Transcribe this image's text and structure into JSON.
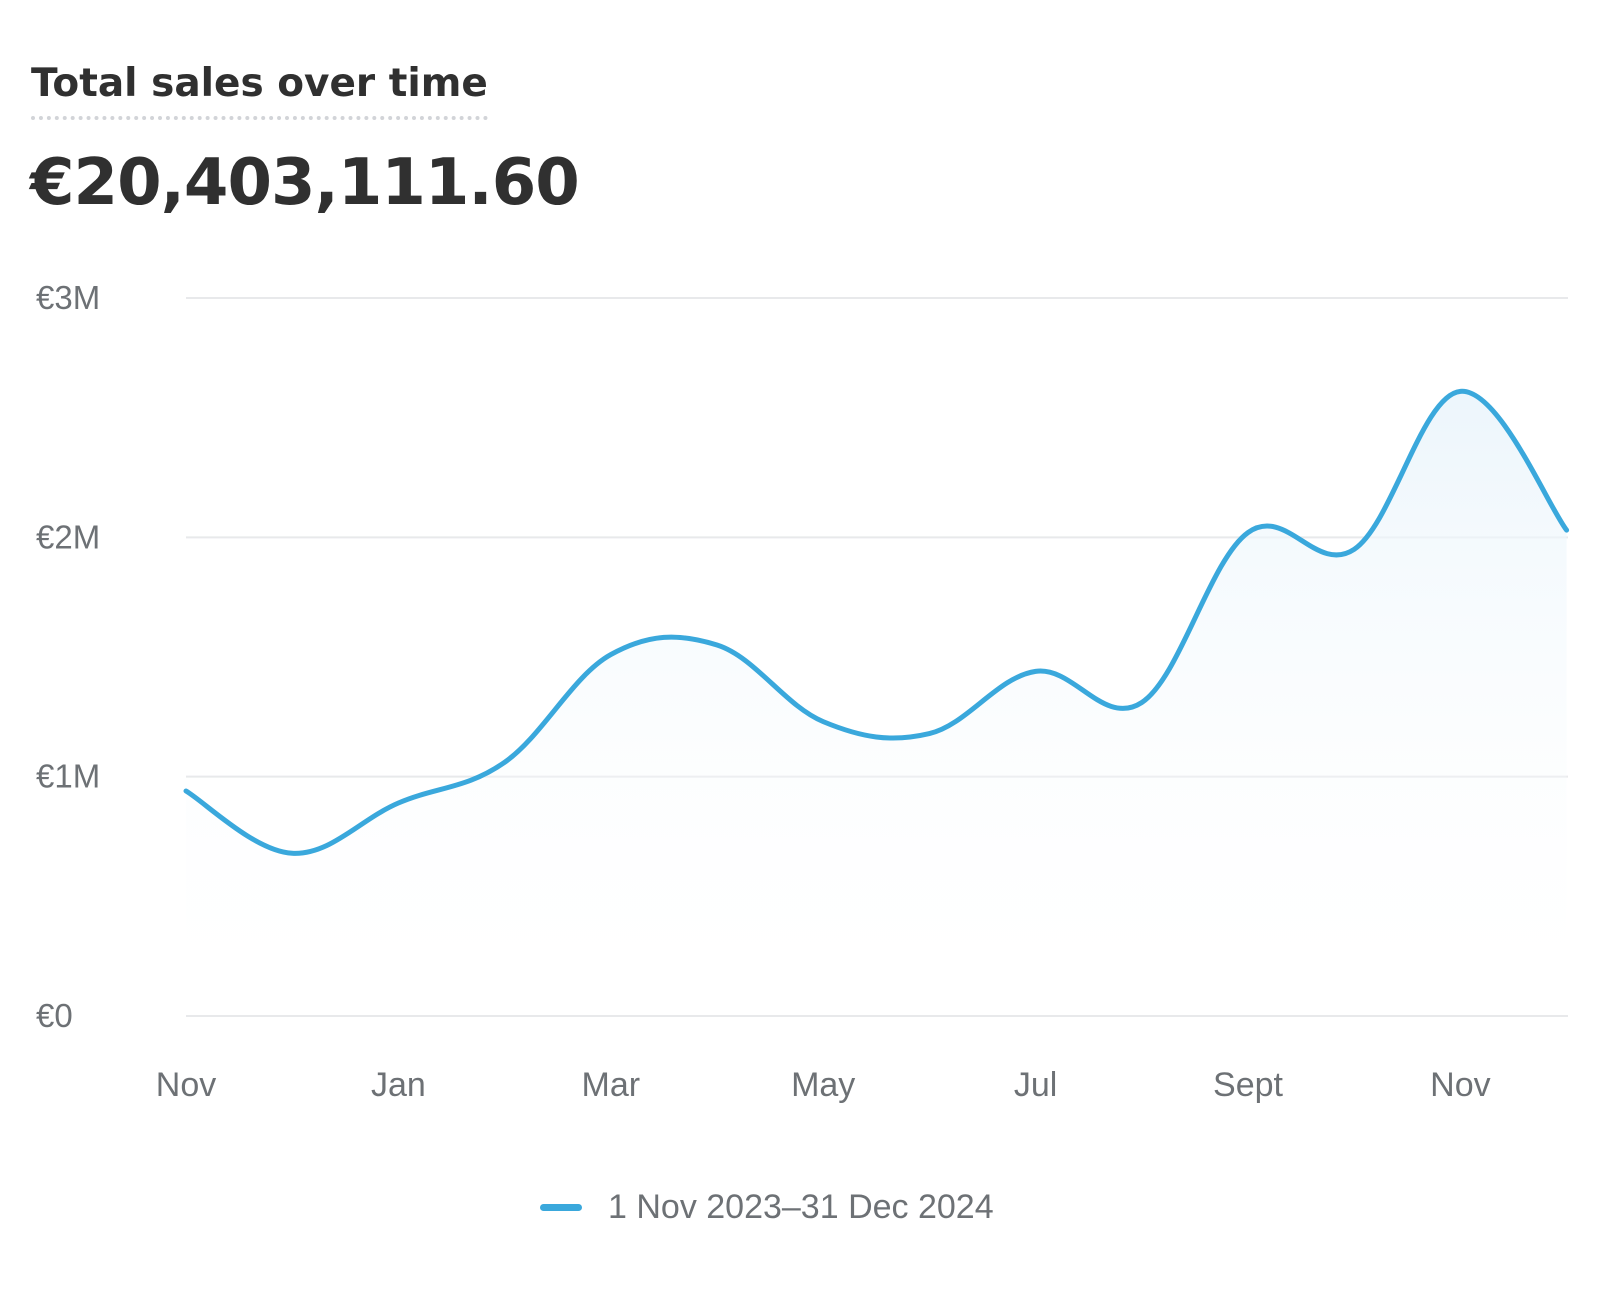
{
  "card": {
    "title": "Total sales over time",
    "total": "€20,403,111.60"
  },
  "colors": {
    "line": "#3aa8dc",
    "area_top": "#e9f4fb",
    "grid": "#e8e9eb",
    "axis_text": "#6d7175"
  },
  "chart_data": {
    "type": "area",
    "title": "Total sales over time",
    "xlabel": "",
    "ylabel": "",
    "x": [
      "2023-11",
      "2023-12",
      "2024-01",
      "2024-02",
      "2024-03",
      "2024-04",
      "2024-05",
      "2024-06",
      "2024-07",
      "2024-08",
      "2024-09",
      "2024-10",
      "2024-11",
      "2024-12"
    ],
    "x_tick_labels": [
      "Nov",
      "Jan",
      "Mar",
      "May",
      "Jul",
      "Sept",
      "Nov"
    ],
    "x_tick_positions": [
      "2023-11",
      "2024-01",
      "2024-03",
      "2024-05",
      "2024-07",
      "2024-09",
      "2024-11"
    ],
    "y_tick_labels": [
      "€0",
      "€1M",
      "€2M",
      "€3M"
    ],
    "y_ticks": [
      0,
      1000000,
      2000000,
      3000000
    ],
    "ylim": [
      0,
      3000000
    ],
    "grid": true,
    "legend_position": "bottom-center",
    "series": [
      {
        "name": "1 Nov 2023–31 Dec 2024",
        "values": [
          940000,
          680000,
          890000,
          1060000,
          1510000,
          1550000,
          1230000,
          1180000,
          1440000,
          1310000,
          2020000,
          1950000,
          2610000,
          2030000
        ]
      }
    ]
  }
}
